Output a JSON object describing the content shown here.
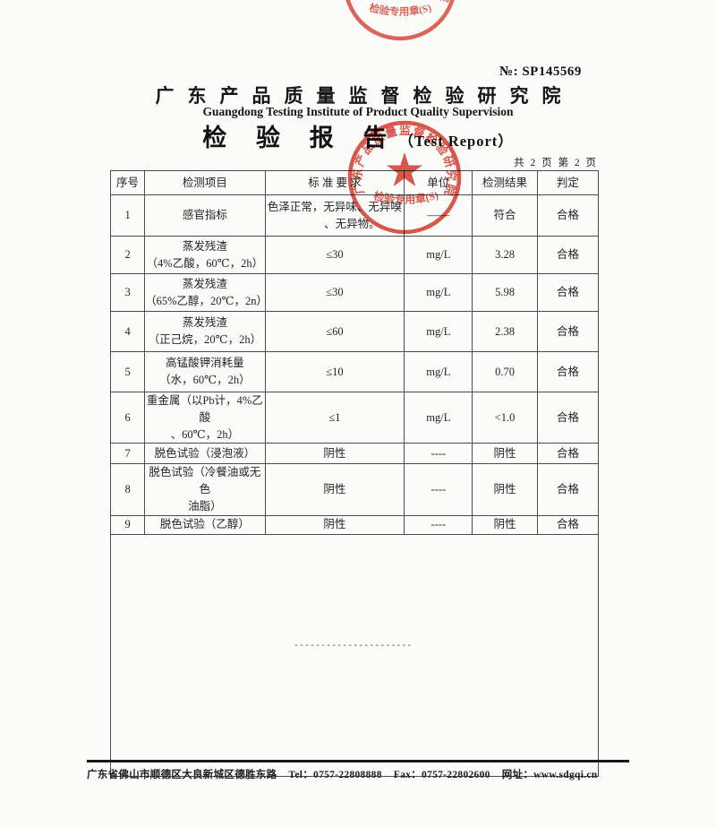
{
  "doc_no": "№: SP145569",
  "header": {
    "title_cn": "广东产品质量监督检验研究院",
    "title_en": "Guangdong Testing Institute of Product Quality Supervision",
    "report_title_cn": "检 验 报 告",
    "report_title_en": "（Test Report）",
    "page_info": "共 2 页 第 2 页"
  },
  "stamp": {
    "ring_text": "广东产品质量监督检验研究院",
    "label": "检验专用章(S)",
    "color": "#d6392e"
  },
  "top_stamp": {
    "ring_text": "广东产品质量监督检验研究院",
    "label": "检验专用章(S)"
  },
  "table": {
    "headers": [
      "序号",
      "检测项目",
      "标 准 要 求",
      "单位",
      "检测结果",
      "判定"
    ],
    "rows": [
      {
        "no": "1",
        "item": [
          "感官指标"
        ],
        "std": [
          "色泽正常，无异味、无异嗅",
          "、无异物。"
        ],
        "unit": "——",
        "result": "符合",
        "verdict": "合格"
      },
      {
        "no": "2",
        "item": [
          "蒸发残渣",
          "（4%乙酸，60℃，2h）"
        ],
        "std": [
          "≤30"
        ],
        "unit": "mg/L",
        "result": "3.28",
        "verdict": "合格"
      },
      {
        "no": "3",
        "item": [
          "蒸发残渣",
          "（65%乙醇，20℃，2n）"
        ],
        "std": [
          "≤30"
        ],
        "unit": "mg/L",
        "result": "5.98",
        "verdict": "合格"
      },
      {
        "no": "4",
        "item": [
          "蒸发残渣",
          "（正己烷，20℃，2h）"
        ],
        "std": [
          "≤60"
        ],
        "unit": "mg/L",
        "result": "2.38",
        "verdict": "合格"
      },
      {
        "no": "5",
        "item": [
          "高锰酸钾消耗量",
          "（水，60℃，2h）"
        ],
        "std": [
          "≤10"
        ],
        "unit": "mg/L",
        "result": "0.70",
        "verdict": "合格"
      },
      {
        "no": "6",
        "item": [
          "重金属（以Pb计，4%乙酸",
          "、60℃，2h）"
        ],
        "std": [
          "≤1"
        ],
        "unit": "mg/L",
        "result": "<1.0",
        "verdict": "合格"
      },
      {
        "no": "7",
        "item": [
          "脱色试验（浸泡液）"
        ],
        "std": [
          "阴性"
        ],
        "unit": "----",
        "result": "阴性",
        "verdict": "合格"
      },
      {
        "no": "8",
        "item": [
          "脱色试验（冷餐油或无色",
          "油脂）"
        ],
        "std": [
          "阴性"
        ],
        "unit": "----",
        "result": "阴性",
        "verdict": "合格"
      },
      {
        "no": "9",
        "item": [
          "脱色试验（乙醇）"
        ],
        "std": [
          "阴性"
        ],
        "unit": "----",
        "result": "阴性",
        "verdict": "合格"
      }
    ]
  },
  "separator_dashes": "----------------------",
  "footer": {
    "address": "广东省佛山市顺德区大良新城区德胜东路",
    "tel": "Tel：0757-22808888",
    "fax": "Fax：0757-22802600",
    "web": "网址：www.sdgqi.cn"
  }
}
